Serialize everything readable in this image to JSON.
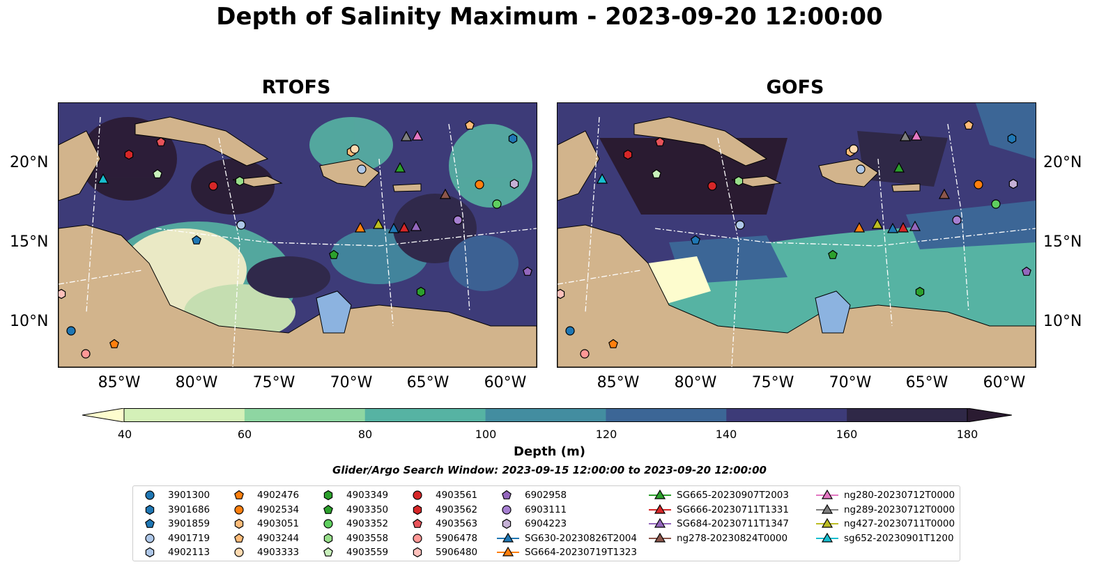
{
  "title": "Depth of Salinity Maximum - 2023-09-20 12:00:00",
  "panels": [
    {
      "title": "RTOFS",
      "colors": {
        "bg": "#3d3b78",
        "land": "#d2b48c"
      }
    },
    {
      "title": "GOFS",
      "colors": {
        "bg": "#3d3b78",
        "land": "#d2b48c"
      }
    }
  ],
  "lat_ticks": [
    "20°N",
    "15°N",
    "10°N"
  ],
  "lon_ticks": [
    "85°W",
    "80°W",
    "75°W",
    "70°W",
    "65°W",
    "60°W"
  ],
  "colorbar": {
    "ticks": [
      "40",
      "60",
      "80",
      "100",
      "120",
      "140",
      "160",
      "180"
    ],
    "colors": [
      "#d4f0b8",
      "#8ed6a2",
      "#56b3a3",
      "#438da0",
      "#3c6696",
      "#3d3b78",
      "#2f2847"
    ],
    "under_color": "#fdfcce",
    "over_color": "#2a1b31",
    "label": "Depth (m)"
  },
  "window_text": "Glider/Argo Search Window: 2023-09-15 12:00:00 to 2023-09-20 12:00:00",
  "legend": [
    {
      "label": "3901300",
      "marker": "circle",
      "color": "#1f77b4"
    },
    {
      "label": "3901686",
      "marker": "hexagon",
      "color": "#1f77b4"
    },
    {
      "label": "3901859",
      "marker": "pentagon",
      "color": "#1f77b4"
    },
    {
      "label": "4901719",
      "marker": "circle",
      "color": "#aec7e8"
    },
    {
      "label": "4902113",
      "marker": "hexagon",
      "color": "#aec7e8"
    },
    {
      "label": "4902476",
      "marker": "pentagon",
      "color": "#ff7f0e"
    },
    {
      "label": "4902534",
      "marker": "circle",
      "color": "#ff7f0e"
    },
    {
      "label": "4903051",
      "marker": "hexagon",
      "color": "#ffbb78"
    },
    {
      "label": "4903244",
      "marker": "pentagon",
      "color": "#ffbb78"
    },
    {
      "label": "4903333",
      "marker": "circle",
      "color": "#ffdab0"
    },
    {
      "label": "4903349",
      "marker": "hexagon",
      "color": "#2ca02c"
    },
    {
      "label": "4903350",
      "marker": "pentagon",
      "color": "#2ca02c"
    },
    {
      "label": "4903352",
      "marker": "circle",
      "color": "#5fcf5f"
    },
    {
      "label": "4903558",
      "marker": "hexagon",
      "color": "#98df8a"
    },
    {
      "label": "4903559",
      "marker": "pentagon",
      "color": "#c8f0bb"
    },
    {
      "label": "4903561",
      "marker": "circle",
      "color": "#d62728"
    },
    {
      "label": "4903562",
      "marker": "hexagon",
      "color": "#d62728"
    },
    {
      "label": "4903563",
      "marker": "pentagon",
      "color": "#e8535a"
    },
    {
      "label": "5906478",
      "marker": "circle",
      "color": "#ff9896"
    },
    {
      "label": "5906480",
      "marker": "hexagon",
      "color": "#ffc0bb"
    },
    {
      "label": "6902958",
      "marker": "pentagon",
      "color": "#9467bd"
    },
    {
      "label": "6903111",
      "marker": "circle",
      "color": "#a67fd1"
    },
    {
      "label": "6904223",
      "marker": "hexagon",
      "color": "#c5b0d5"
    },
    {
      "label": "SG630-20230826T2004",
      "marker": "triangle",
      "color": "#1f77b4"
    },
    {
      "label": "SG664-20230719T1323",
      "marker": "triangle",
      "color": "#ff7f0e"
    },
    {
      "label": "SG665-20230907T2003",
      "marker": "triangle",
      "color": "#2ca02c"
    },
    {
      "label": "SG666-20230711T1331",
      "marker": "triangle",
      "color": "#d62728"
    },
    {
      "label": "SG684-20230711T1347",
      "marker": "triangle",
      "color": "#9467bd"
    },
    {
      "label": "ng278-20230824T0000",
      "marker": "triangle",
      "color": "#8c564b"
    },
    {
      "label": "ng280-20230712T0000",
      "marker": "triangle",
      "color": "#e377c2"
    },
    {
      "label": "ng289-20230712T0000",
      "marker": "triangle",
      "color": "#7f7f7f"
    },
    {
      "label": "ng427-20230711T0000",
      "marker": "triangle",
      "color": "#bcbd22"
    },
    {
      "label": "sg652-20230901T1200",
      "marker": "triangle",
      "color": "#17becf"
    }
  ]
}
